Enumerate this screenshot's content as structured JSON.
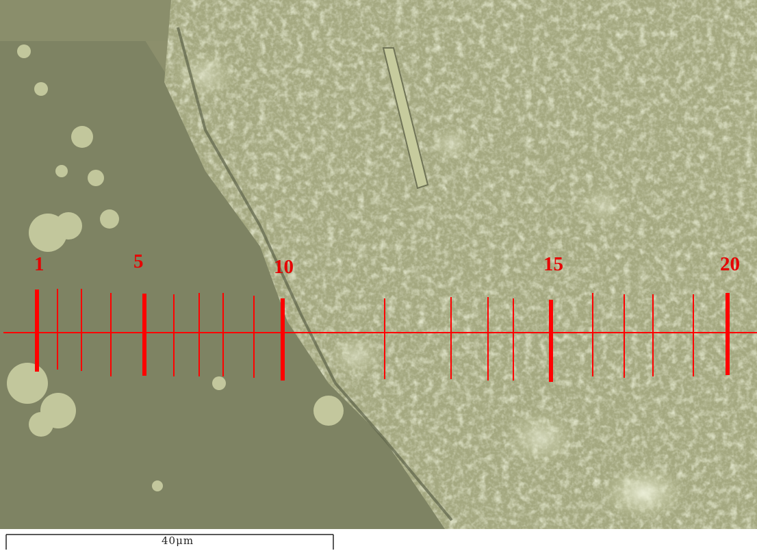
{
  "scale_bar": {
    "label": "40μm"
  },
  "measurement": {
    "line_color": "#ff0000",
    "labels": [
      "1",
      "5",
      "10",
      "15",
      "20"
    ]
  },
  "background": {
    "base_color": "#8c8f6c",
    "particle_color": "#d6dbb0",
    "smooth_face_color": "#808566"
  }
}
